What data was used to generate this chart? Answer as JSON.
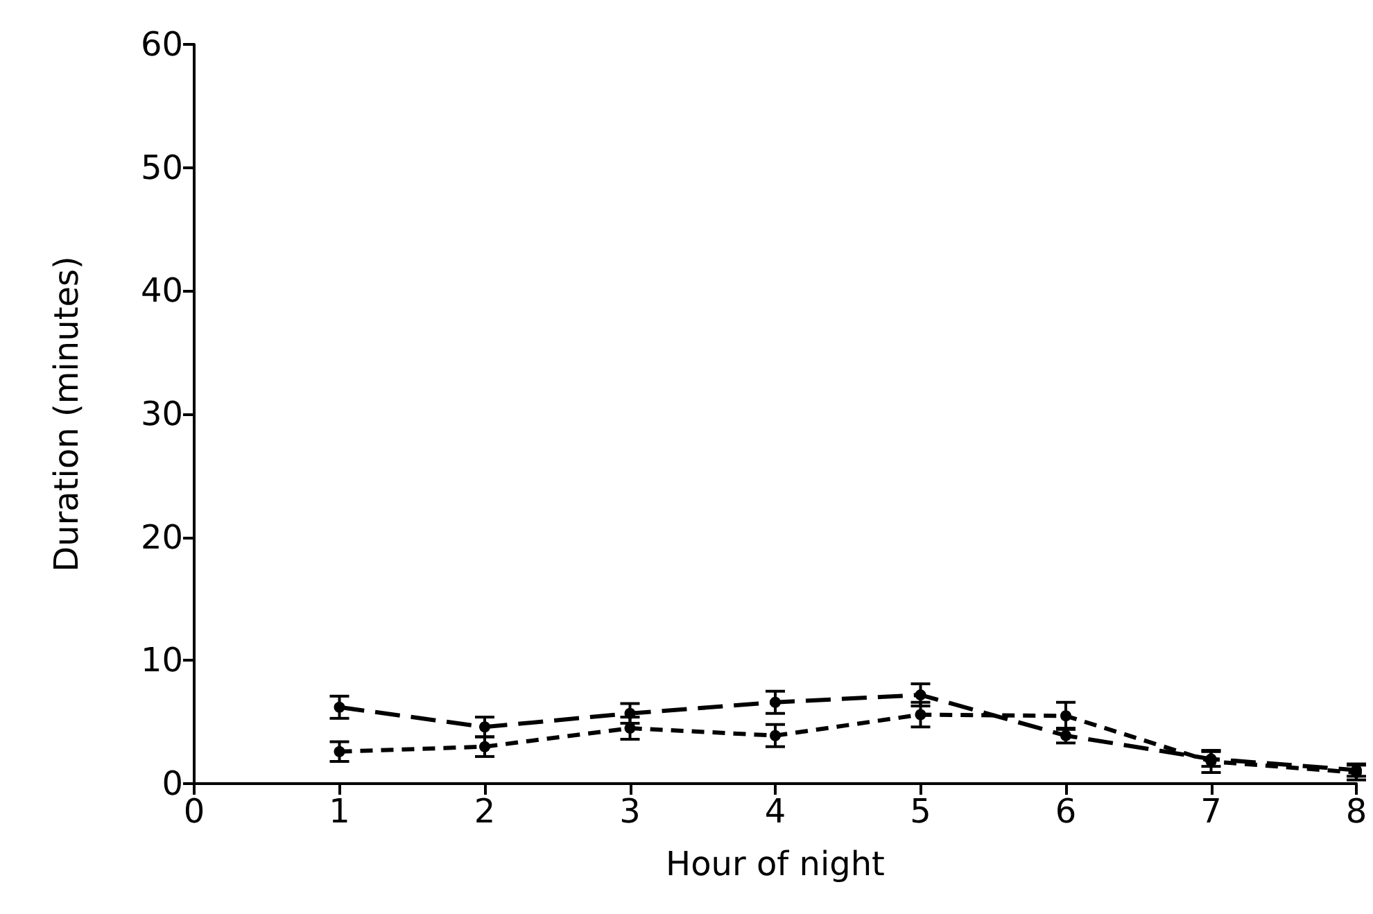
{
  "chart_data": {
    "type": "line",
    "xlabel": "Hour of night",
    "ylabel": "Duration (minutes)",
    "x": [
      1,
      2,
      3,
      4,
      5,
      6,
      7,
      8
    ],
    "series": [
      {
        "color": "#000000",
        "line_style": "dashed",
        "values": [
          6.2,
          4.6,
          5.7,
          6.6,
          7.2,
          3.9,
          2.0,
          1.1
        ],
        "errors": [
          0.9,
          0.8,
          0.8,
          0.9,
          0.9,
          0.6,
          0.6,
          0.5
        ]
      },
      {
        "color": "#000000",
        "line_style": "dashed",
        "values": [
          2.6,
          3.0,
          4.5,
          3.9,
          5.6,
          5.5,
          1.8,
          0.9
        ],
        "errors": [
          0.8,
          0.8,
          0.9,
          0.9,
          1.0,
          1.1,
          0.9,
          0.6
        ]
      }
    ],
    "xlim": [
      0,
      8
    ],
    "xticks": [
      0,
      1,
      2,
      3,
      4,
      5,
      6,
      7,
      8
    ],
    "ylim": [
      0,
      60
    ],
    "yticks": [
      0,
      10,
      20,
      30,
      40,
      50,
      60
    ],
    "grid": false,
    "marker": "circle"
  }
}
